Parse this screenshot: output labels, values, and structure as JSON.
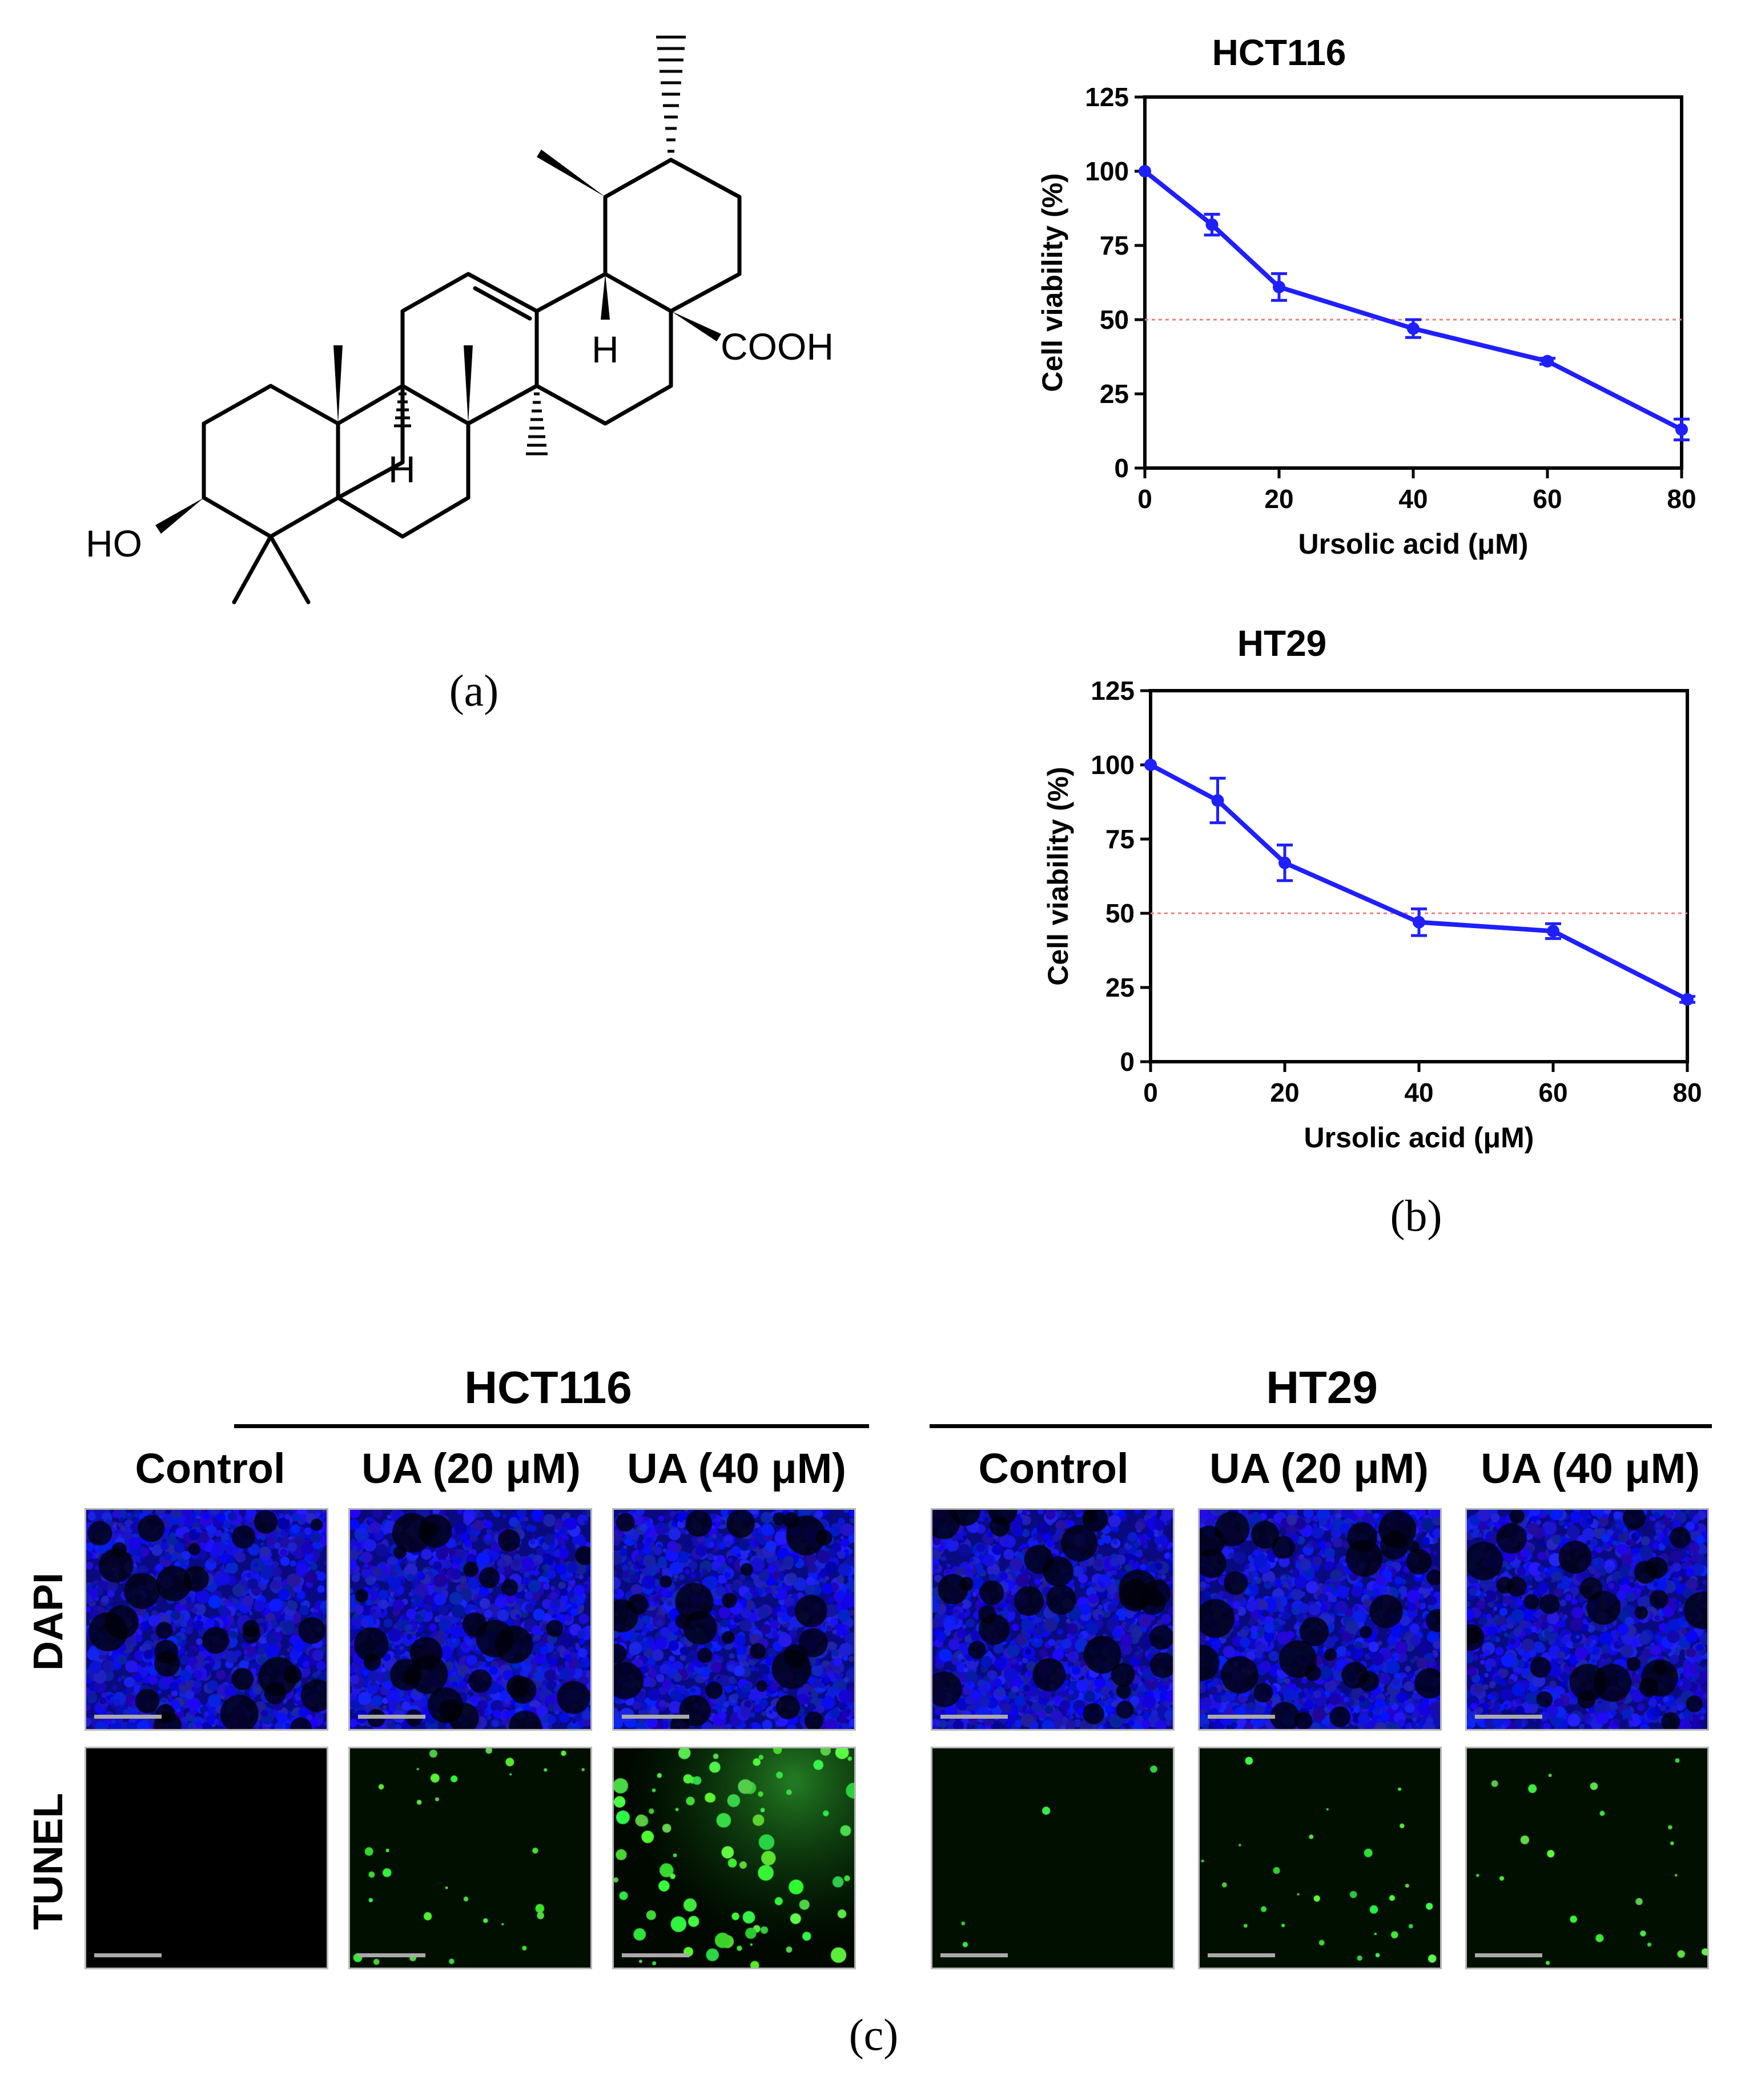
{
  "structure": {
    "substituents": [
      "HO",
      "H",
      "H",
      "COOH"
    ]
  },
  "panel_labels": [
    "(a)",
    "(b)",
    "(c)"
  ],
  "chart_data": [
    {
      "type": "line",
      "title": "HCT116",
      "xlabel": "Ursolic acid (μM)",
      "ylabel": "Cell viability (%)",
      "x": [
        0,
        10,
        20,
        40,
        60,
        80
      ],
      "xticks": [
        "0",
        "20",
        "40",
        "60",
        "80"
      ],
      "yticks": [
        "0",
        "25",
        "50",
        "75",
        "100",
        "125"
      ],
      "xlim": [
        0,
        80
      ],
      "ylim": [
        0,
        125
      ],
      "series": [
        {
          "values": [
            100,
            82,
            61,
            47,
            36,
            13
          ],
          "errors": [
            0.5,
            3.5,
            4.5,
            3,
            1,
            3.5
          ],
          "color": "#1f1fff"
        }
      ],
      "reference_line": {
        "y": 50,
        "color": "#f08080",
        "style": "dotted"
      },
      "grid": false
    },
    {
      "type": "line",
      "title": "HT29",
      "xlabel": "Ursolic acid (μM)",
      "ylabel": "Cell viability (%)",
      "x": [
        0,
        10,
        20,
        40,
        60,
        80
      ],
      "xticks": [
        "0",
        "20",
        "40",
        "60",
        "80"
      ],
      "yticks": [
        "0",
        "25",
        "50",
        "75",
        "100",
        "125"
      ],
      "xlim": [
        0,
        80
      ],
      "ylim": [
        0,
        125
      ],
      "series": [
        {
          "values": [
            100,
            88,
            67,
            47,
            44,
            21
          ],
          "errors": [
            0.5,
            7.5,
            6,
            4.5,
            2.5,
            1
          ],
          "color": "#1f1fff"
        }
      ],
      "reference_line": {
        "y": 50,
        "color": "#f08080",
        "style": "dotted"
      },
      "grid": false
    }
  ],
  "microscopy": {
    "groups": [
      {
        "name": "HCT116",
        "columns": [
          "Control",
          "UA (20 μM)",
          "UA (40 μM)"
        ]
      },
      {
        "name": "HT29",
        "columns": [
          "Control",
          "UA (20 μM)",
          "UA (40 μM)"
        ]
      }
    ],
    "rows": [
      "DAPI",
      "TUNEL"
    ],
    "row_colors": {
      "DAPI": "#1010ff",
      "TUNEL": "#22dd22"
    },
    "tunel_signal_level": [
      [
        0.0,
        0.35,
        0.9
      ],
      [
        0.05,
        0.3,
        0.25
      ]
    ]
  }
}
